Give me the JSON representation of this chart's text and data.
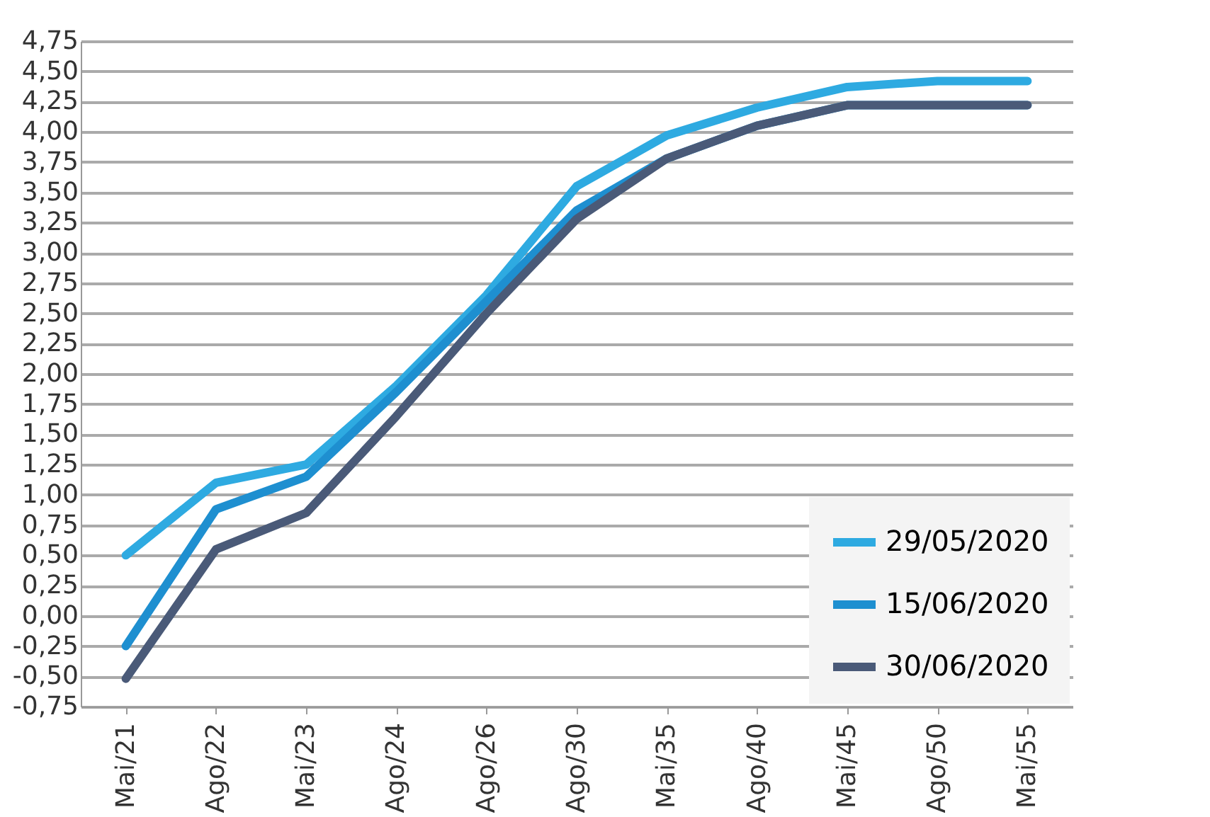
{
  "chart_data": {
    "type": "line",
    "categories": [
      "Mai/21",
      "Ago/22",
      "Mai/23",
      "Ago/24",
      "Ago/26",
      "Ago/30",
      "Mai/35",
      "Ago/40",
      "Mai/45",
      "Ago/50",
      "Mai/55"
    ],
    "series": [
      {
        "name": "29/05/2020",
        "color": "#2eaae1",
        "values": [
          0.5,
          1.1,
          1.25,
          1.9,
          2.65,
          3.55,
          3.97,
          4.2,
          4.37,
          4.42,
          4.42
        ]
      },
      {
        "name": "15/06/2020",
        "color": "#1e8fd0",
        "values": [
          -0.25,
          0.88,
          1.15,
          1.85,
          2.6,
          3.35,
          3.78,
          4.05,
          4.22,
          4.22,
          4.22
        ]
      },
      {
        "name": "30/06/2020",
        "color": "#4a5a78",
        "values": [
          -0.52,
          0.55,
          0.85,
          1.65,
          2.5,
          3.28,
          3.78,
          4.05,
          4.22,
          4.22,
          4.22
        ]
      }
    ],
    "ylim": [
      -0.75,
      4.75
    ],
    "yticks": [
      {
        "value": -0.75,
        "label": "-0,75"
      },
      {
        "value": -0.5,
        "label": "-0,50"
      },
      {
        "value": -0.25,
        "label": "-0,25"
      },
      {
        "value": 0,
        "label": "0,00"
      },
      {
        "value": 0.25,
        "label": "0,25"
      },
      {
        "value": 0.5,
        "label": "0,50"
      },
      {
        "value": 0.75,
        "label": "0,75"
      },
      {
        "value": 1,
        "label": "1,00"
      },
      {
        "value": 1.25,
        "label": "1,25"
      },
      {
        "value": 1.5,
        "label": "1,50"
      },
      {
        "value": 1.75,
        "label": "1,75"
      },
      {
        "value": 2,
        "label": "2,00"
      },
      {
        "value": 2.25,
        "label": "2,25"
      },
      {
        "value": 2.5,
        "label": "2,50"
      },
      {
        "value": 2.75,
        "label": "2,75"
      },
      {
        "value": 3,
        "label": "3,00"
      },
      {
        "value": 3.25,
        "label": "3,25"
      },
      {
        "value": 3.5,
        "label": "3,50"
      },
      {
        "value": 3.75,
        "label": "3,75"
      },
      {
        "value": 4,
        "label": "4,00"
      },
      {
        "value": 4.25,
        "label": "4,25"
      },
      {
        "value": 4.5,
        "label": "4,50"
      },
      {
        "value": 4.75,
        "label": "4,75"
      }
    ],
    "grid": "y",
    "legend": "bottom right",
    "marker": "none",
    "line_style": "solid"
  }
}
